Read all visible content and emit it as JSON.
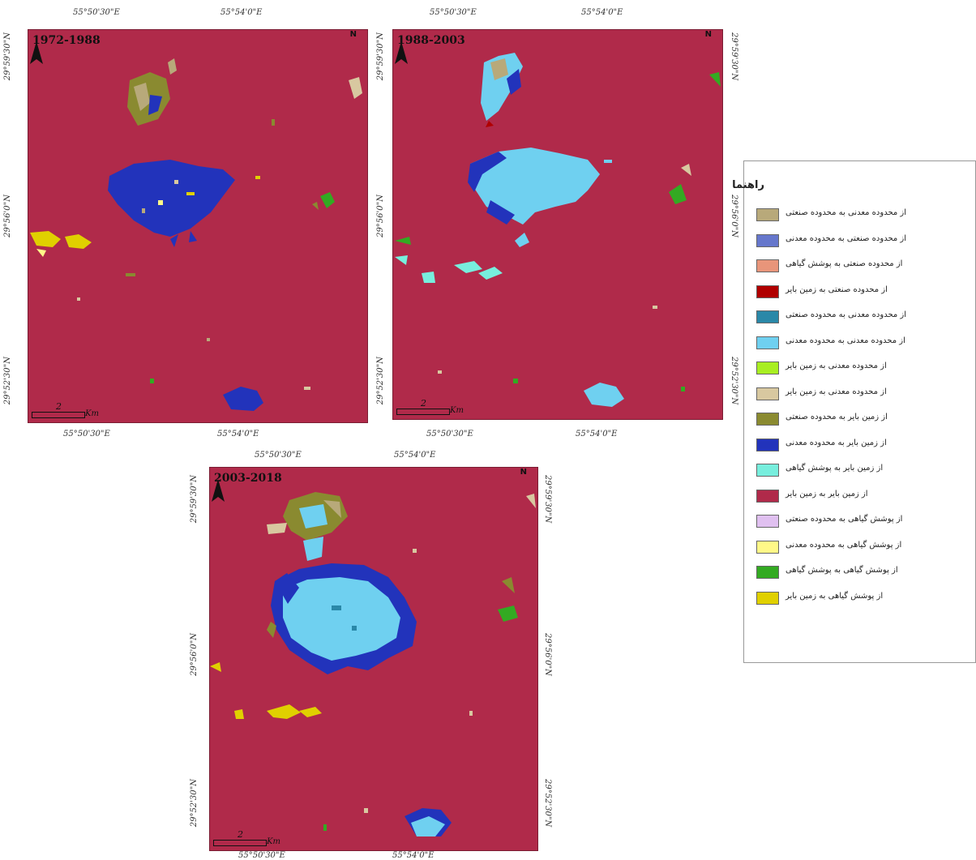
{
  "maps": [
    {
      "period": "1972-1988",
      "top_lon": [
        "55°50'30\"E",
        "55°54'0\"E"
      ],
      "bottom_lon": [
        "55°50'30\"E",
        "55°54'0\"E"
      ],
      "left_lat": [
        "29°59'30\"N",
        "29°56'0\"N",
        "29°52'30\"N"
      ],
      "right_lat": [],
      "scale_value": "2",
      "scale_unit": "Km",
      "north_label": "N"
    },
    {
      "period": "1988-2003",
      "top_lon": [
        "55°50'30\"E",
        "55°54'0\"E"
      ],
      "bottom_lon": [
        "55°50'30\"E",
        "55°54'0\"E"
      ],
      "left_lat": [
        "29°59'30\"N",
        "29°56'0\"N",
        "29°52'30\"N"
      ],
      "right_lat": [
        "29°59'30\"N",
        "29°56'0\"N",
        "29°52'30\"N"
      ],
      "scale_value": "2",
      "scale_unit": "Km",
      "north_label": "N"
    },
    {
      "period": "2003-2018",
      "top_lon": [
        "55°50'30\"E",
        "55°54'0\"E"
      ],
      "bottom_lon": [
        "55°50'30\"E",
        "55°54'0\"E"
      ],
      "left_lat": [
        "29°59'30\"N",
        "29°56'0\"N",
        "29°52'30\"N"
      ],
      "right_lat": [
        "29°59'30\"N",
        "29°56'0\"N",
        "29°52'30\"N"
      ],
      "scale_value": "2",
      "scale_unit": "Km",
      "north_label": "N"
    }
  ],
  "legend": {
    "title": "راهنما",
    "items": [
      {
        "label": "از محدوده معدنی به محدوده صنعتی",
        "color": "#b8a97a"
      },
      {
        "label": "از محدوده صنعتی به محدوده معدنی",
        "color": "#6677cc"
      },
      {
        "label": "از محدوده صنعتی به پوشش گیاهی",
        "color": "#e8957a"
      },
      {
        "label": "از محدوده صنعتی به زمین بایر",
        "color": "#b00000"
      },
      {
        "label": "از محدوده معدنی به محدوده صنعتی",
        "color": "#2a88a8"
      },
      {
        "label": "از محدوده معدنی به محدوده معدنی",
        "color": "#6fd0f0"
      },
      {
        "label": "از محدوده معدنی به زمین بایر",
        "color": "#a8ee22"
      },
      {
        "label": "از محدوده معدنی به زمین بایر",
        "color": "#d8c8a0"
      },
      {
        "label": "از زمین بایر به محدوده صنعتی",
        "color": "#8a8a30"
      },
      {
        "label": "از زمین بایر به محدوده معدنی",
        "color": "#2233bb"
      },
      {
        "label": "از زمین بایر به پوشش گیاهی",
        "color": "#77eedd"
      },
      {
        "label": "از زمین بایر به زمین بایر",
        "color": "#b02a4a"
      },
      {
        "label": "از پوشش گیاهی به محدوده صنعتی",
        "color": "#e0c0f0"
      },
      {
        "label": "از پوشش گیاهی به محدوده معدنی",
        "color": "#fff888"
      },
      {
        "label": "از پوشش گیاهی به پوشش گیاهی",
        "color": "#33aa22"
      },
      {
        "label": "از پوشش گیاهی به زمین بایر",
        "color": "#e0d000"
      }
    ]
  }
}
